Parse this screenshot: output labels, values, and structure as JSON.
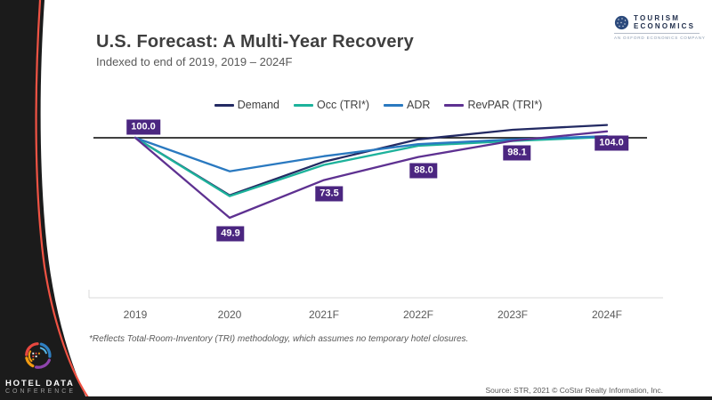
{
  "slide": {
    "title": "U.S. Forecast: A Multi-Year Recovery",
    "subtitle": "Indexed to end of 2019, 2019 – 2024F",
    "footnote": "*Reflects Total-Room-Inventory (TRI) methodology, which assumes no temporary hotel closures.",
    "source": "Source: STR, 2021 © CoStar Realty Information, Inc."
  },
  "logos": {
    "tourism_economics": {
      "name_line1": "TOURISM",
      "name_line2": "ECONOMICS",
      "tagline": "AN OXFORD ECONOMICS COMPANY"
    },
    "hotel_data_conference": {
      "line1": "HOTEL DATA",
      "line2": "CONFERENCE"
    }
  },
  "chart_data": {
    "type": "line",
    "title": "U.S. Forecast: A Multi-Year Recovery",
    "subtitle": "Indexed to end of 2019, 2019 – 2024F",
    "categories": [
      "2019",
      "2020",
      "2021F",
      "2022F",
      "2023F",
      "2024F"
    ],
    "baseline_value": 100,
    "ylim": [
      40,
      112
    ],
    "grid": false,
    "legend_position": "top",
    "series": [
      {
        "name": "Demand",
        "color": "#232a63",
        "values": [
          100,
          64,
          85,
          99,
          105,
          108
        ]
      },
      {
        "name": "Occ (TRI*)",
        "color": "#1db29b",
        "values": [
          100,
          63.5,
          83,
          95,
          98,
          100.5
        ]
      },
      {
        "name": "ADR",
        "color": "#2a79c0",
        "values": [
          100,
          79,
          88.5,
          96,
          99,
          101
        ]
      },
      {
        "name": "RevPAR (TRI*)",
        "color": "#5e3191",
        "values": [
          100,
          49.9,
          73.5,
          88.0,
          98.1,
          104.0
        ]
      }
    ],
    "data_labels": {
      "series": "RevPAR (TRI*)",
      "labels": [
        "100.0",
        "49.9",
        "73.5",
        "88.0",
        "98.1",
        "104.0"
      ],
      "bg_color": "#4b2680",
      "text_color": "#ffffff"
    }
  },
  "colors": {
    "accent_red": "#f05344",
    "band_black": "#1b1b1b",
    "baseline": "#000000",
    "axis_gray": "#d9d9d9",
    "title_gray": "#3f3f3f",
    "muted_gray": "#595959"
  }
}
